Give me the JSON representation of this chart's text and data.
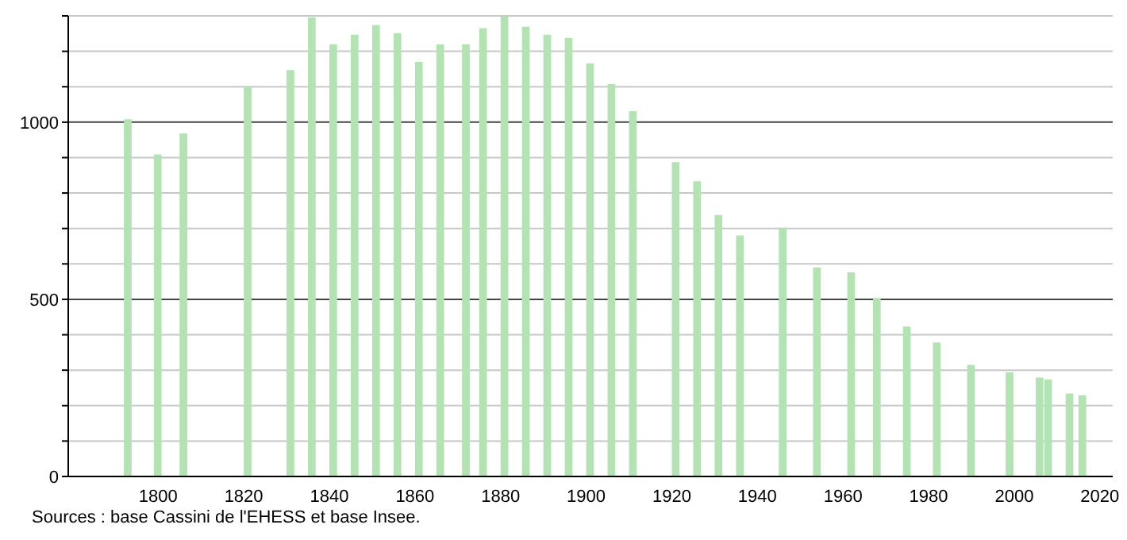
{
  "chart_data": {
    "type": "bar",
    "x": [
      1793,
      1800,
      1806,
      1821,
      1831,
      1836,
      1841,
      1846,
      1851,
      1856,
      1861,
      1866,
      1872,
      1876,
      1881,
      1886,
      1891,
      1896,
      1901,
      1906,
      1911,
      1921,
      1926,
      1931,
      1936,
      1946,
      1954,
      1962,
      1968,
      1975,
      1982,
      1990,
      1999,
      2006,
      2008,
      2013,
      2016
    ],
    "values": [
      1008,
      909,
      968,
      1101,
      1147,
      1296,
      1220,
      1247,
      1274,
      1251,
      1170,
      1220,
      1220,
      1265,
      1299,
      1269,
      1247,
      1238,
      1166,
      1107,
      1031,
      887,
      833,
      738,
      680,
      702,
      590,
      576,
      504,
      423,
      378,
      315,
      294,
      279,
      274,
      234,
      229
    ],
    "color": "#b3e3b3",
    "xlim": [
      1779,
      2023
    ],
    "xticks": [
      1800,
      1820,
      1840,
      1860,
      1880,
      1900,
      1920,
      1940,
      1960,
      1980,
      2000,
      2020
    ],
    "ylim": [
      0,
      1300
    ],
    "yticks": [
      0,
      {
        "value": 100,
        "label": null
      },
      {
        "value": 200,
        "label": null
      },
      {
        "value": 300,
        "label": null
      },
      {
        "value": 400,
        "label": null
      },
      500,
      {
        "value": 600,
        "label": null
      },
      {
        "value": 700,
        "label": null
      },
      {
        "value": 800,
        "label": null
      },
      {
        "value": 900,
        "label": null
      },
      1000,
      {
        "value": 1100,
        "label": null
      },
      {
        "value": 1200,
        "label": null
      },
      {
        "value": 1300,
        "label": null
      }
    ],
    "grid": "y",
    "annotations": [
      "Sources : base Cassini de l'EHESS et base Insee."
    ]
  }
}
